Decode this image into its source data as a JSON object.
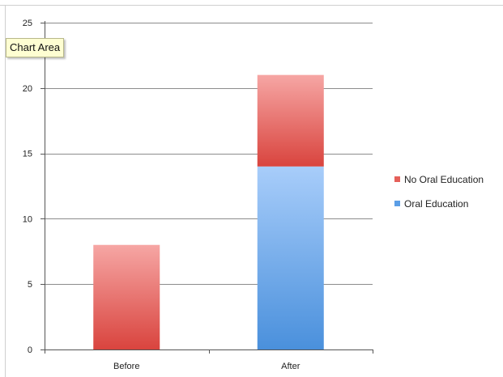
{
  "chart_data": {
    "type": "bar",
    "stacked": true,
    "categories": [
      "Before",
      "After"
    ],
    "series": [
      {
        "name": "Oral Education",
        "values": [
          0,
          14
        ],
        "color": "#5b9ee6"
      },
      {
        "name": "No Oral Education",
        "values": [
          8,
          7
        ],
        "color": "#e5605a"
      }
    ],
    "ylim": [
      0,
      25
    ],
    "yticks": [
      0,
      5,
      10,
      15,
      20,
      25
    ],
    "grid": true,
    "legend": "right"
  },
  "tooltip": {
    "text": "Chart Area"
  },
  "colors": {
    "oral_top": "#a8cdfa",
    "oral_bottom": "#4a90dc",
    "no_oral_top": "#f6a6a4",
    "no_oral_bottom": "#d9443e"
  }
}
